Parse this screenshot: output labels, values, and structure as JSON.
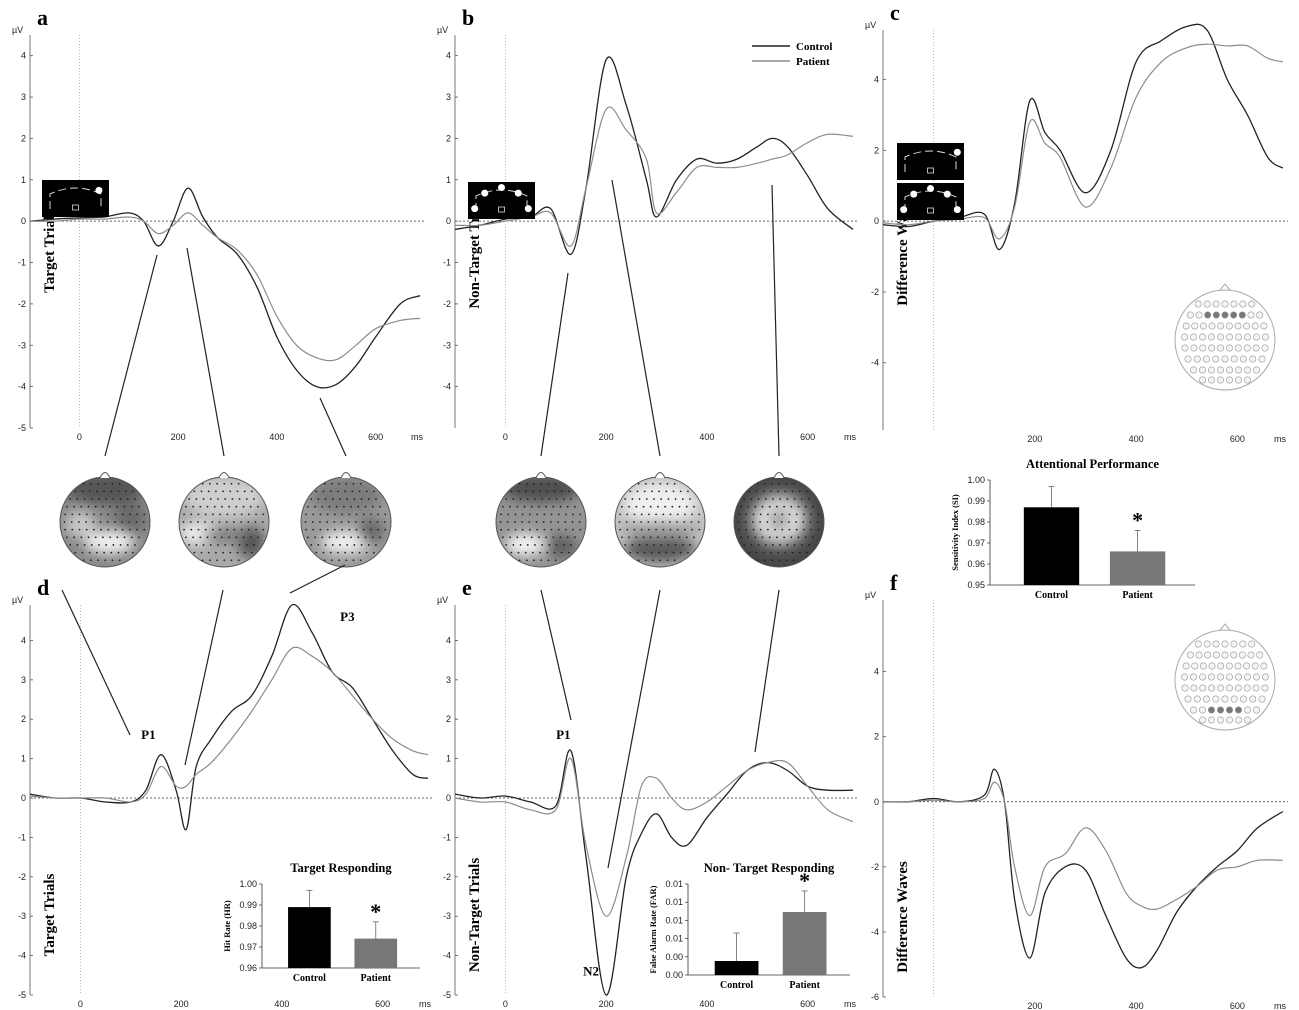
{
  "figure": {
    "legend": {
      "control": "Control",
      "patient": "Patient"
    },
    "colors": {
      "control": "#222222",
      "patient": "#8c8c8c",
      "bar_control": "#000000",
      "bar_patient": "#777777"
    }
  },
  "chart_data": [
    {
      "id": "a",
      "type": "line",
      "panel_label": "a",
      "ylabel": "Target Trials",
      "yunit": "µV",
      "xunit": "ms",
      "xlim": [
        -100,
        700
      ],
      "ylim": [
        -5,
        4.5
      ],
      "xticks": [
        0,
        200,
        400,
        600
      ],
      "yticks": [
        -5,
        -4,
        -3,
        -2,
        -1,
        0,
        1,
        2,
        3,
        4
      ],
      "series": [
        {
          "name": "Control",
          "x": [
            -100,
            -50,
            0,
            50,
            100,
            130,
            160,
            190,
            220,
            250,
            280,
            320,
            360,
            400,
            440,
            480,
            520,
            560,
            600,
            650,
            690
          ],
          "y": [
            0,
            0.05,
            0.08,
            0.1,
            0.2,
            0,
            -0.6,
            0,
            0.8,
            0.1,
            -0.4,
            -0.8,
            -1.6,
            -2.8,
            -3.6,
            -4,
            -3.95,
            -3.5,
            -2.8,
            -2,
            -1.8
          ]
        },
        {
          "name": "Patient",
          "x": [
            -100,
            -50,
            0,
            50,
            100,
            130,
            160,
            190,
            220,
            250,
            280,
            320,
            360,
            400,
            440,
            480,
            520,
            560,
            600,
            650,
            690
          ],
          "y": [
            0,
            0,
            0.05,
            0.05,
            0.1,
            0,
            -0.3,
            -0.1,
            0.2,
            -0.1,
            -0.4,
            -0.7,
            -1.3,
            -2.3,
            -3,
            -3.3,
            -3.35,
            -3,
            -2.6,
            -2.4,
            -2.35
          ]
        }
      ]
    },
    {
      "id": "b",
      "type": "line",
      "panel_label": "b",
      "ylabel": "Non-Target Trials",
      "yunit": "µV",
      "xunit": "ms",
      "xlim": [
        -100,
        700
      ],
      "ylim": [
        -5,
        4.5
      ],
      "xticks": [
        0,
        200,
        400,
        600
      ],
      "yticks": [
        -4,
        -3,
        -2,
        -1,
        0,
        1,
        2,
        3,
        4
      ],
      "series": [
        {
          "name": "Control",
          "x": [
            -100,
            -50,
            0,
            50,
            90,
            130,
            160,
            200,
            240,
            280,
            300,
            340,
            380,
            420,
            460,
            500,
            530,
            560,
            600,
            640,
            690
          ],
          "y": [
            -0.2,
            -0.1,
            0.05,
            0.1,
            0.3,
            -0.8,
            0.8,
            3.9,
            2.8,
            1,
            0.1,
            1,
            1.5,
            1.4,
            1.5,
            1.8,
            2,
            1.8,
            1.1,
            0.3,
            -0.2
          ]
        },
        {
          "name": "Patient",
          "x": [
            -100,
            -50,
            0,
            50,
            90,
            130,
            160,
            200,
            240,
            280,
            300,
            340,
            380,
            420,
            460,
            500,
            530,
            560,
            600,
            640,
            690
          ],
          "y": [
            -0.1,
            -0.1,
            0,
            0.1,
            0.2,
            -0.6,
            0.8,
            2.7,
            2.2,
            1.5,
            0.2,
            0.7,
            1.3,
            1.3,
            1.3,
            1.4,
            1.5,
            1.6,
            1.9,
            2.1,
            2.05
          ]
        }
      ]
    },
    {
      "id": "c",
      "type": "line",
      "panel_label": "c",
      "ylabel": "Difference Waves",
      "yunit": "µV",
      "xunit": "ms",
      "xlim": [
        -100,
        700
      ],
      "ylim": [
        -5.9,
        5.4
      ],
      "xticks": [
        200,
        400,
        600
      ],
      "yticks": [
        -4,
        -2,
        0,
        2,
        4
      ],
      "series": [
        {
          "name": "Control",
          "x": [
            -100,
            -50,
            0,
            50,
            100,
            130,
            160,
            190,
            220,
            250,
            300,
            350,
            400,
            450,
            500,
            540,
            580,
            620,
            660,
            690
          ],
          "y": [
            -0.1,
            -0.15,
            0,
            0.1,
            0.2,
            -0.8,
            0.5,
            3.4,
            2.5,
            2,
            0.8,
            2,
            4.5,
            5.1,
            5.5,
            5.4,
            4,
            3,
            1.8,
            1.5
          ]
        },
        {
          "name": "Patient",
          "x": [
            -100,
            -50,
            0,
            50,
            100,
            130,
            160,
            190,
            220,
            250,
            300,
            350,
            400,
            450,
            500,
            540,
            580,
            620,
            660,
            690
          ],
          "y": [
            -0.05,
            -0.1,
            0,
            0.05,
            0.1,
            -0.5,
            0.4,
            2.8,
            2.2,
            1.8,
            0.4,
            1.5,
            3.5,
            4.5,
            4.9,
            5,
            4.95,
            4.95,
            4.6,
            4.5
          ]
        }
      ]
    },
    {
      "id": "d",
      "type": "line",
      "panel_label": "d",
      "ylabel": "Target Trials",
      "yunit": "µV",
      "xunit": "ms",
      "xlim": [
        -100,
        700
      ],
      "ylim": [
        -5,
        4.9
      ],
      "xticks": [
        0,
        200,
        400,
        600
      ],
      "yticks": [
        -5,
        -4,
        -3,
        -2,
        -1,
        0,
        1,
        2,
        3,
        4
      ],
      "annotations": [
        {
          "text": "P1",
          "x": 135,
          "y": 1.5
        },
        {
          "text": "P3",
          "x": 530,
          "y": 4.5
        }
      ],
      "series": [
        {
          "name": "Control",
          "x": [
            -100,
            -50,
            0,
            50,
            100,
            130,
            160,
            190,
            210,
            230,
            260,
            300,
            340,
            380,
            420,
            460,
            500,
            540,
            580,
            620,
            660,
            690
          ],
          "y": [
            0.1,
            0,
            0,
            -0.1,
            -0.1,
            0.2,
            1.1,
            0.2,
            -0.8,
            0.8,
            1.5,
            2.2,
            2.6,
            3.6,
            4.9,
            4.2,
            3.2,
            2.8,
            2,
            1.2,
            0.6,
            0.5
          ]
        },
        {
          "name": "Patient",
          "x": [
            -100,
            -50,
            0,
            50,
            100,
            130,
            160,
            190,
            210,
            230,
            260,
            300,
            340,
            380,
            420,
            460,
            500,
            540,
            580,
            620,
            660,
            690
          ],
          "y": [
            0.05,
            0,
            0,
            0,
            -0.1,
            0.1,
            0.8,
            0.3,
            0.3,
            0.6,
            0.9,
            1.5,
            2.2,
            3,
            3.8,
            3.6,
            3.2,
            2.6,
            2,
            1.5,
            1.2,
            1.1
          ]
        }
      ],
      "inset": {
        "type": "bar",
        "title": "Target Responding",
        "ylabel": "Hit Rate (HR)",
        "categories": [
          "Control",
          "Patient"
        ],
        "values": [
          0.989,
          0.974
        ],
        "errors": [
          0.008,
          0.008
        ],
        "ylim": [
          0.96,
          1.0
        ],
        "yticks": [
          "0.96",
          "0.97",
          "0.98",
          "0.99",
          "1.00"
        ],
        "significance": "*"
      }
    },
    {
      "id": "e",
      "type": "line",
      "panel_label": "e",
      "ylabel": "Non-Target Trials",
      "yunit": "µV",
      "xunit": "ms",
      "xlim": [
        -100,
        700
      ],
      "ylim": [
        -5,
        4.9
      ],
      "xticks": [
        0,
        200,
        400,
        600
      ],
      "yticks": [
        -5,
        -4,
        -3,
        -2,
        -1,
        0,
        1,
        2,
        3,
        4
      ],
      "annotations": [
        {
          "text": "P1",
          "x": 115,
          "y": 1.5
        },
        {
          "text": "N2",
          "x": 170,
          "y": -4.5
        }
      ],
      "series": [
        {
          "name": "Control",
          "x": [
            -100,
            -50,
            0,
            50,
            100,
            130,
            160,
            200,
            240,
            270,
            300,
            330,
            360,
            400,
            440,
            480,
            520,
            560,
            600,
            640,
            690
          ],
          "y": [
            0.1,
            0,
            0.05,
            -0.1,
            -0.2,
            1.2,
            -1.5,
            -5,
            -2,
            -0.9,
            -0.4,
            -1,
            -1.2,
            -0.5,
            0.1,
            0.7,
            0.9,
            0.7,
            0.3,
            0.2,
            0.2
          ]
        },
        {
          "name": "Patient",
          "x": [
            -100,
            -50,
            0,
            50,
            100,
            130,
            160,
            200,
            240,
            270,
            300,
            330,
            360,
            400,
            440,
            480,
            520,
            560,
            600,
            640,
            690
          ],
          "y": [
            0,
            -0.1,
            -0.1,
            -0.3,
            -0.3,
            1,
            -1.2,
            -3,
            -1.5,
            0.3,
            0.5,
            0,
            -0.3,
            -0.1,
            0.3,
            0.7,
            0.9,
            0.9,
            0.3,
            -0.3,
            -0.6
          ]
        }
      ],
      "inset": {
        "type": "bar",
        "title": "Non- Target Responding",
        "ylabel": "False Alarm Rate (FAR)",
        "categories": [
          "Control",
          "Patient"
        ],
        "values": [
          0.002,
          0.009
        ],
        "errors": [
          0.004,
          0.003
        ],
        "ylim": [
          0,
          0.013
        ],
        "yticks": [
          "0.00",
          "0.00",
          "0.01",
          "0.01",
          "0.01",
          "0.01"
        ],
        "significance": "*"
      }
    },
    {
      "id": "f",
      "type": "line",
      "panel_label": "f",
      "ylabel": "Difference Waves",
      "yunit": "µV",
      "xunit": "ms",
      "xlim": [
        -100,
        700
      ],
      "ylim": [
        -6,
        6.2
      ],
      "xticks": [
        200,
        400,
        600
      ],
      "yticks": [
        -6,
        -4,
        -2,
        0,
        2,
        4
      ],
      "series": [
        {
          "name": "Control",
          "x": [
            -100,
            -50,
            0,
            50,
            100,
            120,
            140,
            160,
            190,
            220,
            260,
            300,
            340,
            380,
            410,
            440,
            480,
            520,
            560,
            600,
            640,
            690
          ],
          "y": [
            0,
            0,
            0.1,
            0,
            0.2,
            1,
            0,
            -3,
            -4.8,
            -2.8,
            -2,
            -2.1,
            -3.5,
            -4.8,
            -5.1,
            -4.6,
            -3.4,
            -2.6,
            -2,
            -1.5,
            -0.8,
            -0.3
          ]
        },
        {
          "name": "Patient",
          "x": [
            -100,
            -50,
            0,
            50,
            100,
            120,
            140,
            160,
            190,
            220,
            260,
            300,
            340,
            380,
            410,
            440,
            480,
            520,
            560,
            600,
            640,
            690
          ],
          "y": [
            0,
            0,
            0.05,
            0,
            0.1,
            0.6,
            0,
            -2,
            -3.5,
            -2,
            -1.6,
            -0.8,
            -1.5,
            -2.8,
            -3.2,
            -3.3,
            -3,
            -2.6,
            -2.1,
            -2,
            -1.8,
            -1.8
          ]
        }
      ]
    },
    {
      "id": "g",
      "type": "bar",
      "title": "Attentional Performance",
      "ylabel": "Sensitivity Index (SI)",
      "categories": [
        "Control",
        "Patient"
      ],
      "values": [
        0.987,
        0.966
      ],
      "errors": [
        0.01,
        0.01
      ],
      "ylim": [
        0.95,
        1.0
      ],
      "yticks": [
        "0.95",
        "0.96",
        "0.97",
        "0.98",
        "0.99",
        "1.00"
      ],
      "significance": "*"
    }
  ]
}
